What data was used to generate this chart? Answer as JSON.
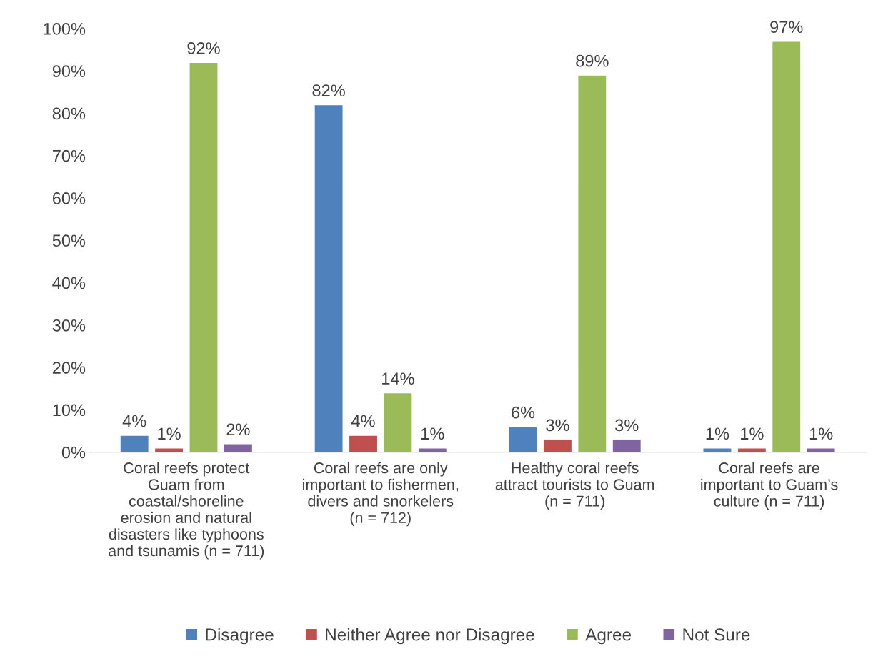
{
  "chart_data": {
    "type": "bar",
    "categories": [
      "Coral reefs protect\nGuam from\ncoastal/shoreline\nerosion and natural\ndisasters like typhoons\nand tsunamis (n = 711)",
      "Coral reefs are only\nimportant to fishermen,\ndivers and snorkelers\n(n = 712)",
      "Healthy coral reefs\nattract tourists to Guam\n(n = 711)",
      "Coral reefs are\nimportant to Guam’s\nculture (n = 711)"
    ],
    "series": [
      {
        "name": "Disagree",
        "color": "#4f81bd",
        "values": [
          4,
          82,
          6,
          1
        ],
        "value_labels": [
          "4%",
          "82%",
          "6%",
          "1%"
        ]
      },
      {
        "name": "Neither Agree nor Disagree",
        "color": "#c0504d",
        "values": [
          1,
          4,
          3,
          1
        ],
        "value_labels": [
          "1%",
          "4%",
          "3%",
          "1%"
        ]
      },
      {
        "name": "Agree",
        "color": "#9bbb59",
        "values": [
          92,
          14,
          89,
          97
        ],
        "value_labels": [
          "92%",
          "14%",
          "89%",
          "97%"
        ]
      },
      {
        "name": "Not Sure",
        "color": "#8064a2",
        "values": [
          2,
          1,
          3,
          1
        ],
        "value_labels": [
          "2%",
          "1%",
          "3%",
          "1%"
        ]
      }
    ],
    "ylim": [
      0,
      100
    ],
    "yticks": [
      {
        "value": 0,
        "label": "0%"
      },
      {
        "value": 10,
        "label": "10%"
      },
      {
        "value": 20,
        "label": "20%"
      },
      {
        "value": 30,
        "label": "30%"
      },
      {
        "value": 40,
        "label": "40%"
      },
      {
        "value": 50,
        "label": "50%"
      },
      {
        "value": 60,
        "label": "60%"
      },
      {
        "value": 70,
        "label": "70%"
      },
      {
        "value": 80,
        "label": "80%"
      },
      {
        "value": 90,
        "label": "90%"
      },
      {
        "value": 100,
        "label": "100%"
      }
    ],
    "grid": false,
    "legend": "bottom"
  }
}
